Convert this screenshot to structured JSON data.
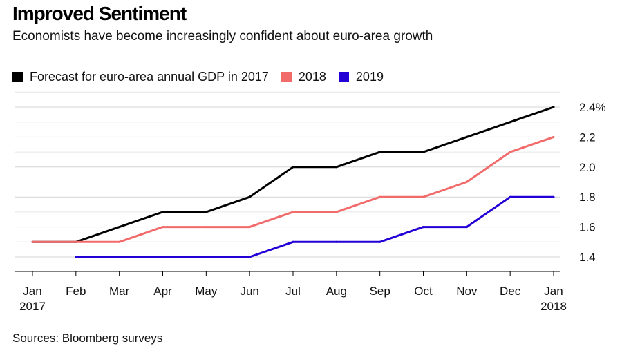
{
  "header": {
    "title": "Improved Sentiment",
    "subtitle": "Economists have become increasingly confident about euro-area growth"
  },
  "footer": {
    "source": "Sources: Bloomberg surveys"
  },
  "chart_data": {
    "type": "line",
    "title": "Improved Sentiment",
    "subtitle": "Economists have become increasingly confident about euro-area growth",
    "xlabel": "",
    "ylabel": "",
    "x": [
      "Jan 2017",
      "Feb 2017",
      "Mar 2017",
      "Apr 2017",
      "May 2017",
      "Jun 2017",
      "Jul 2017",
      "Aug 2017",
      "Sep 2017",
      "Oct 2017",
      "Nov 2017",
      "Dec 2017",
      "Jan 2018"
    ],
    "x_tick_labels": [
      [
        "Jan",
        "2017"
      ],
      [
        "Feb"
      ],
      [
        "Mar"
      ],
      [
        "Apr"
      ],
      [
        "May"
      ],
      [
        "Jun"
      ],
      [
        "Jul"
      ],
      [
        "Aug"
      ],
      [
        "Sep"
      ],
      [
        "Oct"
      ],
      [
        "Nov"
      ],
      [
        "Dec"
      ],
      [
        "Jan",
        "2018"
      ]
    ],
    "y_ticks": [
      1.4,
      1.6,
      1.8,
      2.0,
      2.2,
      2.4
    ],
    "y_tick_labels": [
      "1.4",
      "1.6",
      "1.8",
      "2.0",
      "2.2",
      "2.4%"
    ],
    "ylim": [
      1.35,
      2.45
    ],
    "grid": true,
    "legend_position": "top-left",
    "series": [
      {
        "name": "Forecast for euro-area annual GDP in 2017",
        "color": "#000000",
        "values": [
          1.5,
          1.5,
          1.6,
          1.7,
          1.7,
          1.8,
          2.0,
          2.0,
          2.1,
          2.1,
          2.2,
          2.3,
          2.4
        ]
      },
      {
        "name": "2018",
        "color": "#f26b6b",
        "values": [
          1.5,
          1.5,
          1.5,
          1.6,
          1.6,
          1.6,
          1.7,
          1.7,
          1.8,
          1.8,
          1.9,
          2.1,
          2.2
        ]
      },
      {
        "name": "2019",
        "color": "#2200d6",
        "values": [
          null,
          1.4,
          1.4,
          1.4,
          1.4,
          1.4,
          1.5,
          1.5,
          1.5,
          1.6,
          1.6,
          1.8,
          1.8
        ]
      }
    ]
  }
}
